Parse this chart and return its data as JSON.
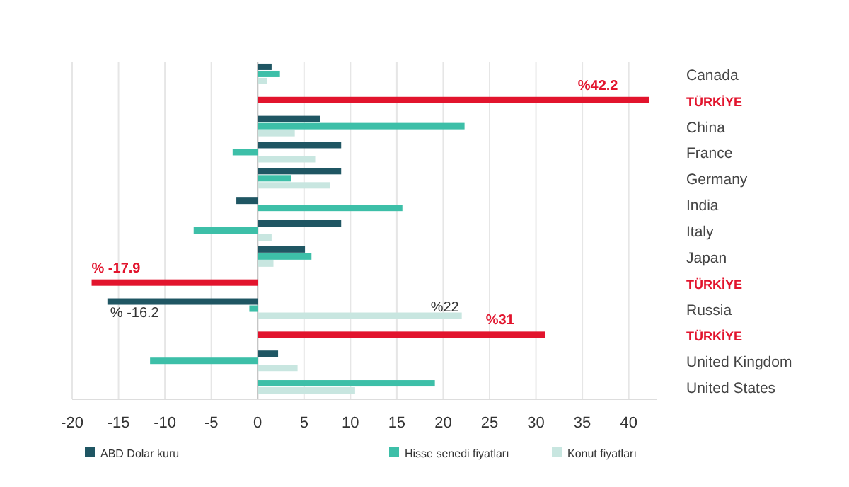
{
  "chart_data": {
    "type": "bar",
    "orientation": "horizontal",
    "categories": [
      "Canada",
      "TÜRKİYE",
      "China",
      "France",
      "Germany",
      "India",
      "Italy",
      "Japan",
      "TÜRKİYE",
      "Russia",
      "TÜRKİYE",
      "United Kingdom",
      "United States"
    ],
    "series": [
      {
        "name": "ABD Dolar kuru",
        "color": "#1f5663",
        "values": [
          1.5,
          null,
          6.7,
          9.0,
          9.0,
          -2.3,
          9.0,
          5.1,
          null,
          -16.2,
          null,
          2.2,
          null
        ],
        "value_labels": [
          null,
          null,
          null,
          null,
          null,
          null,
          null,
          null,
          null,
          "% -16.2",
          null,
          null,
          null
        ]
      },
      {
        "name": "Hisse senedi fiyatları",
        "color": "#3dbfa8",
        "values": [
          2.4,
          null,
          22.3,
          -2.7,
          3.6,
          15.6,
          -6.9,
          5.8,
          null,
          -0.9,
          null,
          -11.6,
          19.1
        ],
        "value_labels": [
          null,
          null,
          null,
          null,
          null,
          null,
          null,
          null,
          null,
          null,
          null,
          null,
          null
        ]
      },
      {
        "name": "Konut fiyatları",
        "color": "#c8e6e0",
        "values": [
          1.0,
          null,
          4.0,
          6.2,
          7.8,
          null,
          1.5,
          1.7,
          null,
          22,
          null,
          4.3,
          10.5
        ],
        "value_labels": [
          null,
          null,
          null,
          null,
          null,
          null,
          null,
          null,
          null,
          "%22",
          null,
          null,
          null
        ]
      },
      {
        "color": "#e2142d",
        "values": [
          null,
          42.2,
          null,
          null,
          null,
          null,
          null,
          null,
          -17.9,
          null,
          31,
          null,
          null
        ],
        "value_labels": [
          null,
          "%42.2",
          null,
          null,
          null,
          null,
          null,
          null,
          "% -17.9",
          null,
          "%31",
          null,
          null
        ]
      }
    ],
    "xlim": [
      -20,
      43
    ],
    "xticks": [
      -20,
      -15,
      -10,
      -5,
      0,
      5,
      10,
      15,
      20,
      25,
      30,
      35,
      40
    ],
    "grid": "x",
    "legend": "bottom"
  }
}
